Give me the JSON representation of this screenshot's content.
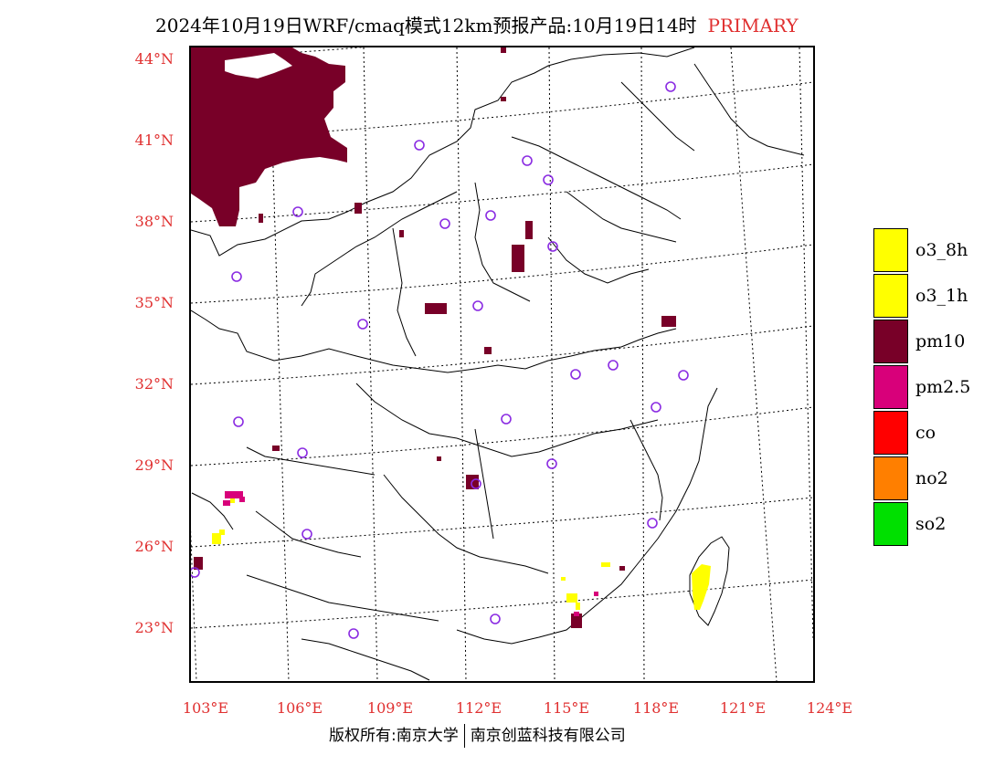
{
  "title": {
    "text": "2024年10月19日WRF/cmaq模式12km预报产品:10月19日14时",
    "tag": "PRIMARY"
  },
  "lat_labels": [
    "44°N",
    "41°N",
    "38°N",
    "35°N",
    "32°N",
    "29°N",
    "26°N",
    "23°N"
  ],
  "lon_labels": [
    "103°E",
    "106°E",
    "109°E",
    "112°E",
    "115°E",
    "118°E",
    "121°E",
    "124°E"
  ],
  "legend": [
    {
      "label": "o3_8h",
      "color": "#ffff00"
    },
    {
      "label": "o3_1h",
      "color": "#ffff00"
    },
    {
      "label": "pm10",
      "color": "#780028"
    },
    {
      "label": "pm2.5",
      "color": "#d8007a"
    },
    {
      "label": "co",
      "color": "#ff0000"
    },
    {
      "label": "no2",
      "color": "#ff7f00"
    },
    {
      "label": "so2",
      "color": "#00e000"
    }
  ],
  "copyright": {
    "left": "版权所有:南京大学",
    "right": "南京创蓝科技有限公司"
  },
  "colors": {
    "label_red": "#e03030",
    "station_marker": "#8a2be2",
    "pm10": "#780028",
    "pm25": "#d8007a",
    "o3": "#ffff00"
  }
}
